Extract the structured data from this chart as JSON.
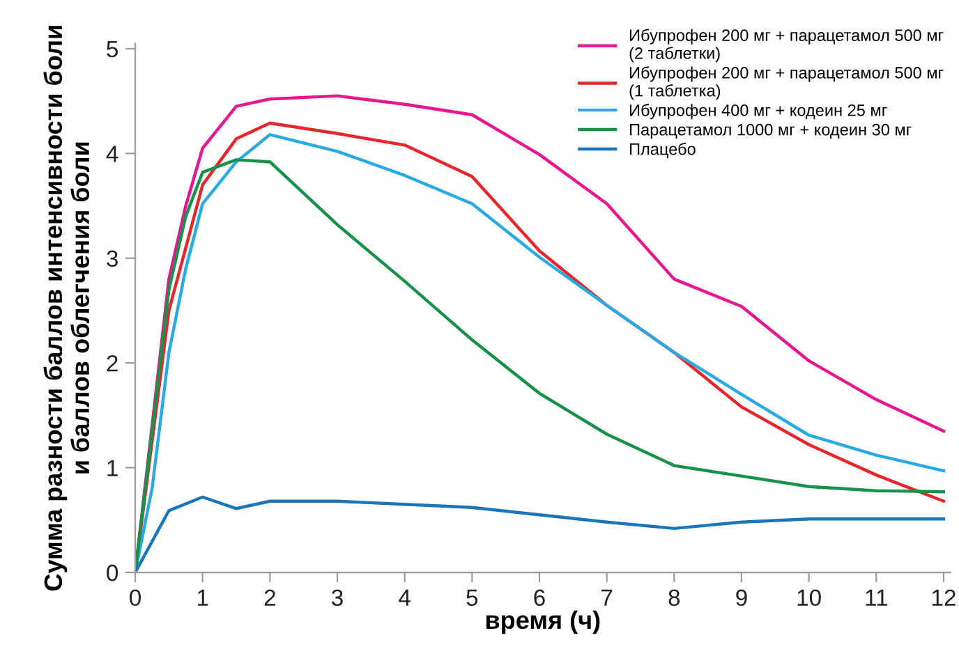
{
  "chart_data": {
    "type": "line",
    "xlabel": "время (ч)",
    "ylabel": "Сумма разности баллов интенсивности боли\nи баллов облегчения боли",
    "xlim": [
      0,
      12.1
    ],
    "ylim": [
      0,
      5.05
    ],
    "xticks": [
      0,
      1,
      2,
      3,
      4,
      5,
      6,
      7,
      8,
      9,
      10,
      11,
      12
    ],
    "yticks": [
      0,
      1,
      2,
      3,
      4,
      5
    ],
    "grid": false,
    "legend": "top right",
    "marker": "none",
    "line_style": "solid",
    "series": [
      {
        "name": "Ибупрофен 200 мг + парацетамол 500 мг\n(2 таблетки)",
        "color": "#e6178f",
        "x": [
          0,
          0.5,
          0.75,
          1,
          1.5,
          2,
          3,
          4,
          5,
          6,
          7,
          8,
          9,
          10,
          11,
          12
        ],
        "values": [
          0,
          2.8,
          3.5,
          4.05,
          4.45,
          4.52,
          4.55,
          4.47,
          4.37,
          3.99,
          3.52,
          2.8,
          2.54,
          2.02,
          1.65,
          1.35
        ]
      },
      {
        "name": "Ибупрофен 200 мг + парацетамол 500 мг\n(1 таблетка)",
        "color": "#e8262b",
        "x": [
          0,
          0.5,
          1,
          1.5,
          2,
          3,
          4,
          5,
          6,
          7,
          8,
          9,
          10,
          11,
          12
        ],
        "values": [
          0,
          2.5,
          3.7,
          4.14,
          4.29,
          4.19,
          4.08,
          3.78,
          3.07,
          2.55,
          2.1,
          1.58,
          1.22,
          0.93,
          0.68
        ]
      },
      {
        "name": "Ибупрофен 400 мг + кодеин 25 мг",
        "color": "#29aae2",
        "x": [
          0,
          0.25,
          0.5,
          0.75,
          1,
          1.5,
          2,
          3,
          4,
          5,
          6,
          7,
          8,
          9,
          10,
          11,
          12
        ],
        "values": [
          0,
          0.8,
          2.1,
          2.9,
          3.52,
          3.92,
          4.18,
          4.02,
          3.79,
          3.52,
          3.01,
          2.55,
          2.1,
          1.7,
          1.31,
          1.12,
          0.97
        ]
      },
      {
        "name": "Парацетамол 1000 мг + кодеин 30 мг",
        "color": "#16924a",
        "x": [
          0,
          0.5,
          0.75,
          1,
          1.5,
          2,
          3,
          4,
          5,
          6,
          7,
          8,
          9,
          10,
          11,
          12
        ],
        "values": [
          0,
          2.7,
          3.4,
          3.82,
          3.94,
          3.92,
          3.32,
          2.78,
          2.22,
          1.71,
          1.32,
          1.02,
          0.92,
          0.82,
          0.78,
          0.77
        ]
      },
      {
        "name": "Плацебо",
        "color": "#1b75bb",
        "x": [
          0,
          0.5,
          1,
          1.5,
          2,
          3,
          4,
          5,
          6,
          7,
          8,
          9,
          10,
          11,
          12
        ],
        "values": [
          0,
          0.59,
          0.72,
          0.61,
          0.68,
          0.68,
          0.65,
          0.62,
          0.55,
          0.48,
          0.42,
          0.48,
          0.51,
          0.51,
          0.51
        ]
      }
    ]
  }
}
